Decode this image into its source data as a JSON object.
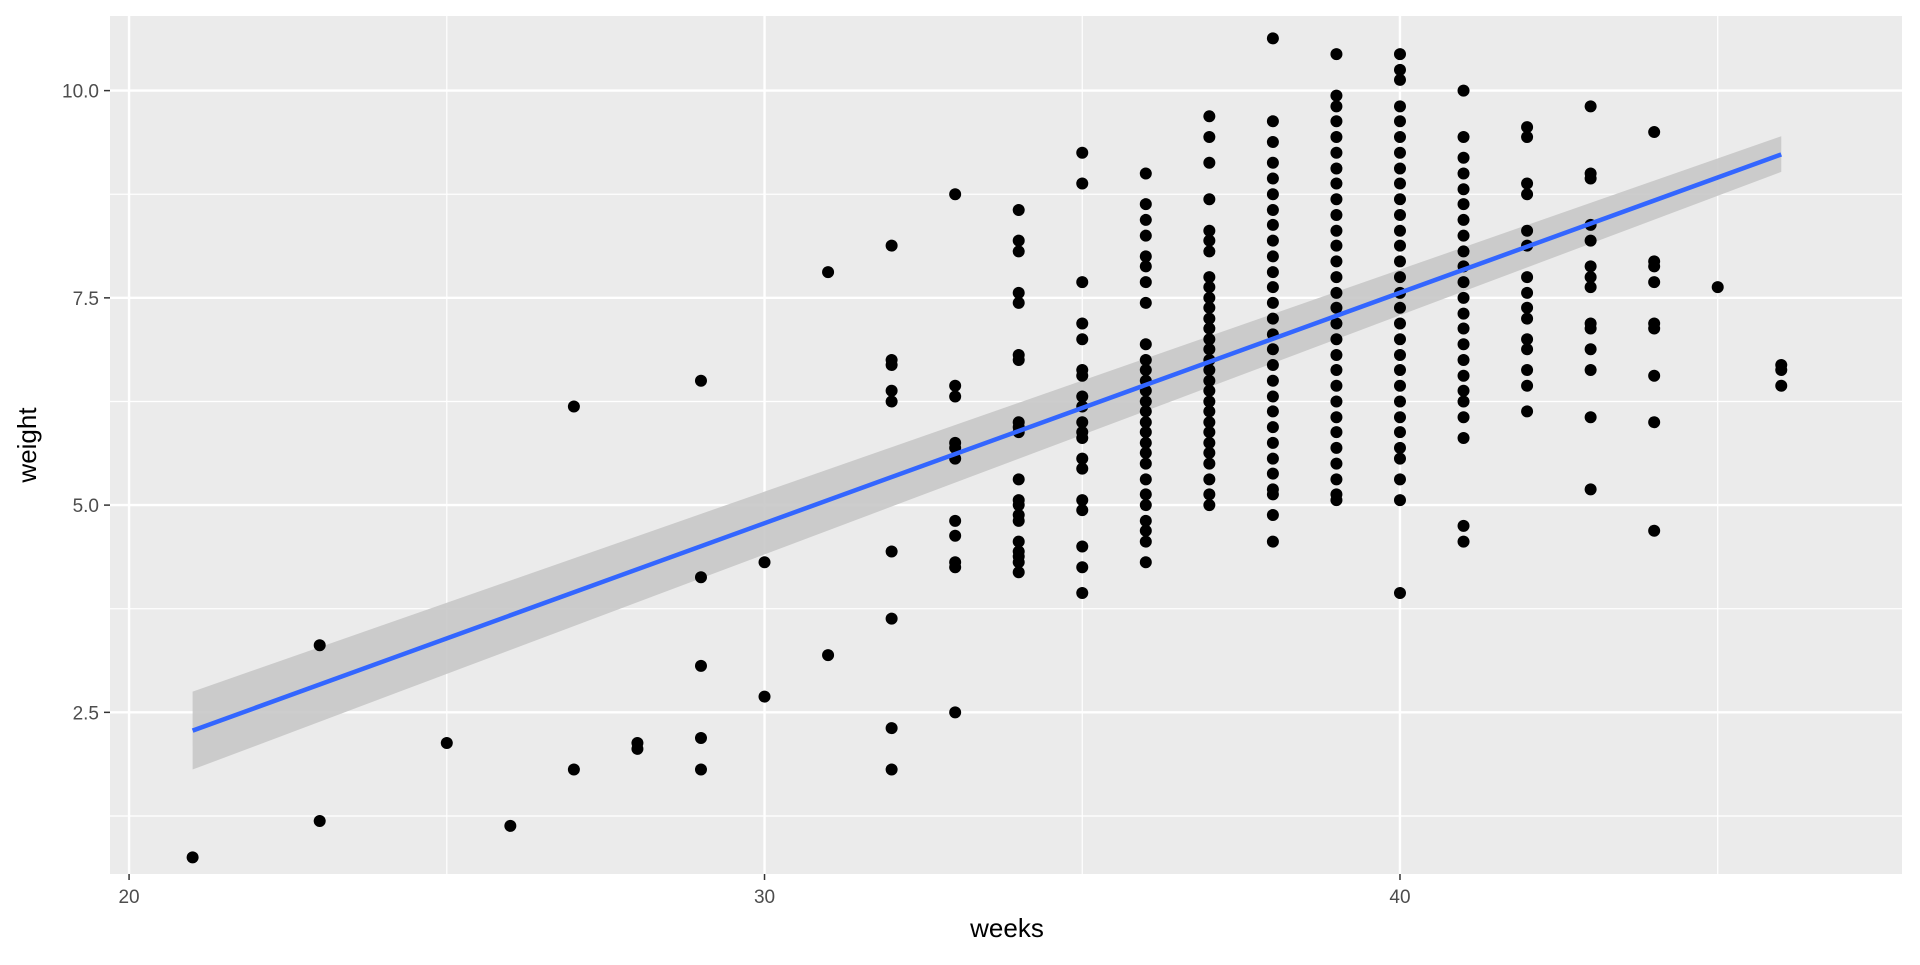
{
  "chart_data": {
    "type": "scatter",
    "title": "",
    "xlabel": "weeks",
    "ylabel": "weight",
    "xlim": [
      19.7,
      47.9
    ],
    "ylim": [
      0.55,
      10.9
    ],
    "x_ticks": [
      20,
      30,
      40
    ],
    "x_tick_labels": [
      "20",
      "30",
      "40"
    ],
    "y_ticks": [
      2.5,
      5.0,
      7.5,
      10.0
    ],
    "y_tick_labels": [
      "2.5",
      "5.0",
      "7.5",
      "10.0"
    ],
    "grid": true,
    "legend": "none",
    "colors": {
      "panel_background": "#ebebeb",
      "grid": "#ffffff",
      "points": "#000000",
      "fit_line": "#3366ff",
      "confidence_band": "#c8c8c8"
    },
    "points": [
      [
        21,
        0.75
      ],
      [
        23,
        3.31
      ],
      [
        23,
        1.19
      ],
      [
        25,
        2.13
      ],
      [
        26,
        1.13
      ],
      [
        27,
        6.19
      ],
      [
        27,
        1.81
      ],
      [
        28,
        2.13
      ],
      [
        28,
        2.06
      ],
      [
        29,
        6.5
      ],
      [
        29,
        4.13
      ],
      [
        29,
        3.06
      ],
      [
        29,
        2.19
      ],
      [
        29,
        1.81
      ],
      [
        30,
        4.31
      ],
      [
        30,
        2.69
      ],
      [
        31,
        7.81
      ],
      [
        31,
        3.19
      ],
      [
        32,
        8.13
      ],
      [
        32,
        6.75
      ],
      [
        32,
        6.69
      ],
      [
        32,
        6.38
      ],
      [
        32,
        6.25
      ],
      [
        32,
        4.44
      ],
      [
        32,
        3.63
      ],
      [
        32,
        2.31
      ],
      [
        32,
        1.81
      ],
      [
        33,
        8.75
      ],
      [
        33,
        6.44
      ],
      [
        33,
        6.31
      ],
      [
        33,
        5.75
      ],
      [
        33,
        5.69
      ],
      [
        33,
        5.56
      ],
      [
        33,
        4.81
      ],
      [
        33,
        4.63
      ],
      [
        33,
        4.31
      ],
      [
        33,
        4.25
      ],
      [
        33,
        2.5
      ],
      [
        34,
        8.56
      ],
      [
        34,
        8.19
      ],
      [
        34,
        8.06
      ],
      [
        34,
        7.56
      ],
      [
        34,
        7.44
      ],
      [
        34,
        6.81
      ],
      [
        34,
        6.75
      ],
      [
        34,
        6.0
      ],
      [
        34,
        5.94
      ],
      [
        34,
        5.88
      ],
      [
        34,
        5.31
      ],
      [
        34,
        5.06
      ],
      [
        34,
        5.0
      ],
      [
        34,
        4.88
      ],
      [
        34,
        4.81
      ],
      [
        34,
        4.56
      ],
      [
        34,
        4.44
      ],
      [
        34,
        4.38
      ],
      [
        34,
        4.31
      ],
      [
        34,
        4.19
      ],
      [
        35,
        9.25
      ],
      [
        35,
        8.88
      ],
      [
        35,
        7.69
      ],
      [
        35,
        7.19
      ],
      [
        35,
        7.0
      ],
      [
        35,
        6.63
      ],
      [
        35,
        6.56
      ],
      [
        35,
        6.31
      ],
      [
        35,
        6.19
      ],
      [
        35,
        6.0
      ],
      [
        35,
        5.88
      ],
      [
        35,
        5.81
      ],
      [
        35,
        5.56
      ],
      [
        35,
        5.44
      ],
      [
        35,
        5.06
      ],
      [
        35,
        4.94
      ],
      [
        35,
        4.5
      ],
      [
        35,
        4.25
      ],
      [
        35,
        3.94
      ],
      [
        36,
        9.0
      ],
      [
        36,
        8.63
      ],
      [
        36,
        8.44
      ],
      [
        36,
        8.25
      ],
      [
        36,
        8.0
      ],
      [
        36,
        7.88
      ],
      [
        36,
        7.69
      ],
      [
        36,
        7.44
      ],
      [
        36,
        6.94
      ],
      [
        36,
        6.75
      ],
      [
        36,
        6.63
      ],
      [
        36,
        6.5
      ],
      [
        36,
        6.38
      ],
      [
        36,
        6.25
      ],
      [
        36,
        6.13
      ],
      [
        36,
        6.0
      ],
      [
        36,
        5.88
      ],
      [
        36,
        5.75
      ],
      [
        36,
        5.63
      ],
      [
        36,
        5.5
      ],
      [
        36,
        5.31
      ],
      [
        36,
        5.13
      ],
      [
        36,
        5.0
      ],
      [
        36,
        4.81
      ],
      [
        36,
        4.69
      ],
      [
        36,
        4.56
      ],
      [
        36,
        4.31
      ],
      [
        37,
        9.69
      ],
      [
        37,
        9.44
      ],
      [
        37,
        9.13
      ],
      [
        37,
        8.69
      ],
      [
        37,
        8.31
      ],
      [
        37,
        8.19
      ],
      [
        37,
        8.06
      ],
      [
        37,
        7.75
      ],
      [
        37,
        7.63
      ],
      [
        37,
        7.5
      ],
      [
        37,
        7.38
      ],
      [
        37,
        7.25
      ],
      [
        37,
        7.13
      ],
      [
        37,
        7.0
      ],
      [
        37,
        6.88
      ],
      [
        37,
        6.75
      ],
      [
        37,
        6.63
      ],
      [
        37,
        6.5
      ],
      [
        37,
        6.38
      ],
      [
        37,
        6.25
      ],
      [
        37,
        6.13
      ],
      [
        37,
        6.0
      ],
      [
        37,
        5.88
      ],
      [
        37,
        5.75
      ],
      [
        37,
        5.63
      ],
      [
        37,
        5.5
      ],
      [
        37,
        5.31
      ],
      [
        37,
        5.13
      ],
      [
        37,
        5.0
      ],
      [
        38,
        10.63
      ],
      [
        38,
        9.63
      ],
      [
        38,
        9.38
      ],
      [
        38,
        9.13
      ],
      [
        38,
        8.94
      ],
      [
        38,
        8.75
      ],
      [
        38,
        8.56
      ],
      [
        38,
        8.38
      ],
      [
        38,
        8.19
      ],
      [
        38,
        8.0
      ],
      [
        38,
        7.81
      ],
      [
        38,
        7.63
      ],
      [
        38,
        7.44
      ],
      [
        38,
        7.25
      ],
      [
        38,
        7.06
      ],
      [
        38,
        6.88
      ],
      [
        38,
        6.69
      ],
      [
        38,
        6.5
      ],
      [
        38,
        6.31
      ],
      [
        38,
        6.13
      ],
      [
        38,
        5.94
      ],
      [
        38,
        5.75
      ],
      [
        38,
        5.56
      ],
      [
        38,
        5.38
      ],
      [
        38,
        5.19
      ],
      [
        38,
        5.13
      ],
      [
        38,
        4.88
      ],
      [
        38,
        4.56
      ],
      [
        39,
        10.44
      ],
      [
        39,
        9.94
      ],
      [
        39,
        9.81
      ],
      [
        39,
        9.63
      ],
      [
        39,
        9.44
      ],
      [
        39,
        9.25
      ],
      [
        39,
        9.06
      ],
      [
        39,
        8.88
      ],
      [
        39,
        8.69
      ],
      [
        39,
        8.5
      ],
      [
        39,
        8.31
      ],
      [
        39,
        8.13
      ],
      [
        39,
        7.94
      ],
      [
        39,
        7.75
      ],
      [
        39,
        7.56
      ],
      [
        39,
        7.38
      ],
      [
        39,
        7.19
      ],
      [
        39,
        7.0
      ],
      [
        39,
        6.81
      ],
      [
        39,
        6.63
      ],
      [
        39,
        6.44
      ],
      [
        39,
        6.25
      ],
      [
        39,
        6.06
      ],
      [
        39,
        5.88
      ],
      [
        39,
        5.69
      ],
      [
        39,
        5.5
      ],
      [
        39,
        5.31
      ],
      [
        39,
        5.13
      ],
      [
        39,
        5.06
      ],
      [
        40,
        10.44
      ],
      [
        40,
        10.25
      ],
      [
        40,
        10.13
      ],
      [
        40,
        9.81
      ],
      [
        40,
        9.63
      ],
      [
        40,
        9.44
      ],
      [
        40,
        9.25
      ],
      [
        40,
        9.06
      ],
      [
        40,
        8.88
      ],
      [
        40,
        8.69
      ],
      [
        40,
        8.5
      ],
      [
        40,
        8.31
      ],
      [
        40,
        8.13
      ],
      [
        40,
        7.94
      ],
      [
        40,
        7.75
      ],
      [
        40,
        7.56
      ],
      [
        40,
        7.38
      ],
      [
        40,
        7.19
      ],
      [
        40,
        7.0
      ],
      [
        40,
        6.81
      ],
      [
        40,
        6.63
      ],
      [
        40,
        6.44
      ],
      [
        40,
        6.25
      ],
      [
        40,
        6.06
      ],
      [
        40,
        5.88
      ],
      [
        40,
        5.69
      ],
      [
        40,
        5.56
      ],
      [
        40,
        5.31
      ],
      [
        40,
        5.06
      ],
      [
        40,
        3.94
      ],
      [
        41,
        10.0
      ],
      [
        41,
        9.44
      ],
      [
        41,
        9.19
      ],
      [
        41,
        9.0
      ],
      [
        41,
        8.81
      ],
      [
        41,
        8.63
      ],
      [
        41,
        8.44
      ],
      [
        41,
        8.25
      ],
      [
        41,
        8.06
      ],
      [
        41,
        7.88
      ],
      [
        41,
        7.69
      ],
      [
        41,
        7.5
      ],
      [
        41,
        7.31
      ],
      [
        41,
        7.13
      ],
      [
        41,
        6.94
      ],
      [
        41,
        6.75
      ],
      [
        41,
        6.56
      ],
      [
        41,
        6.38
      ],
      [
        41,
        6.25
      ],
      [
        41,
        6.06
      ],
      [
        41,
        5.81
      ],
      [
        41,
        4.75
      ],
      [
        41,
        4.56
      ],
      [
        42,
        9.56
      ],
      [
        42,
        9.44
      ],
      [
        42,
        8.88
      ],
      [
        42,
        8.75
      ],
      [
        42,
        8.31
      ],
      [
        42,
        8.13
      ],
      [
        42,
        7.75
      ],
      [
        42,
        7.56
      ],
      [
        42,
        7.38
      ],
      [
        42,
        7.25
      ],
      [
        42,
        7.0
      ],
      [
        42,
        6.88
      ],
      [
        42,
        6.63
      ],
      [
        42,
        6.44
      ],
      [
        42,
        6.13
      ],
      [
        43,
        9.81
      ],
      [
        43,
        9.0
      ],
      [
        43,
        8.94
      ],
      [
        43,
        8.38
      ],
      [
        43,
        8.19
      ],
      [
        43,
        7.88
      ],
      [
        43,
        7.75
      ],
      [
        43,
        7.63
      ],
      [
        43,
        7.19
      ],
      [
        43,
        7.13
      ],
      [
        43,
        6.88
      ],
      [
        43,
        6.63
      ],
      [
        43,
        6.06
      ],
      [
        43,
        5.19
      ],
      [
        44,
        9.5
      ],
      [
        44,
        7.94
      ],
      [
        44,
        7.88
      ],
      [
        44,
        7.69
      ],
      [
        44,
        7.19
      ],
      [
        44,
        7.13
      ],
      [
        44,
        6.56
      ],
      [
        44,
        6.0
      ],
      [
        44,
        4.69
      ],
      [
        45,
        7.63
      ],
      [
        46,
        6.69
      ],
      [
        46,
        6.63
      ],
      [
        46,
        6.44
      ]
    ],
    "fit": {
      "method": "lm",
      "x": [
        21,
        46
      ],
      "y": [
        2.28,
        9.23
      ]
    },
    "confidence_band": {
      "x": [
        21,
        46
      ],
      "lower": [
        1.81,
        9.02
      ],
      "upper": [
        2.75,
        9.45
      ]
    }
  }
}
